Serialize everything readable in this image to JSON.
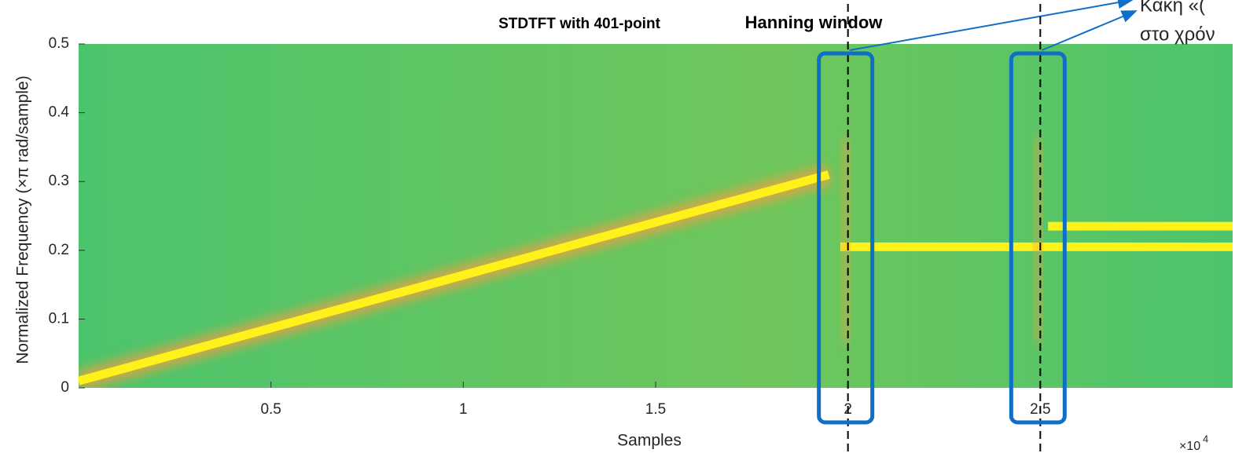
{
  "chart_data": {
    "type": "spectrogram",
    "title": "STDTFT with 401-point",
    "annotation": "Hanning window",
    "xlabel": "Samples",
    "x_multiplier": "×10",
    "x_multiplier_exponent": "4",
    "ylabel": "Normalized Frequency  (×π rad/sample)",
    "xlim": [
      0,
      3
    ],
    "ylim": [
      0,
      0.5
    ],
    "xticks": [
      0.5,
      1,
      1.5,
      2,
      2.5
    ],
    "yticks": [
      0,
      0.1,
      0.2,
      0.3,
      0.4,
      0.5
    ],
    "background_color": "#4cc46c",
    "series": [
      {
        "color": "#fff21a",
        "x": [
          0,
          1.95
        ],
        "values": [
          0.01,
          0.31
        ]
      },
      {
        "color": "#fff21a",
        "x": [
          1.98,
          3
        ],
        "values": [
          0.205,
          0.205
        ]
      },
      {
        "color": "#fff21a",
        "x": [
          2.52,
          3
        ],
        "values": [
          0.235,
          0.235
        ]
      }
    ],
    "highlights": [
      2,
      2.5
    ],
    "highlight_color": "#0f6fc6",
    "callout_lines": [
      "Κακή «(",
      "στο χρόν"
    ]
  }
}
